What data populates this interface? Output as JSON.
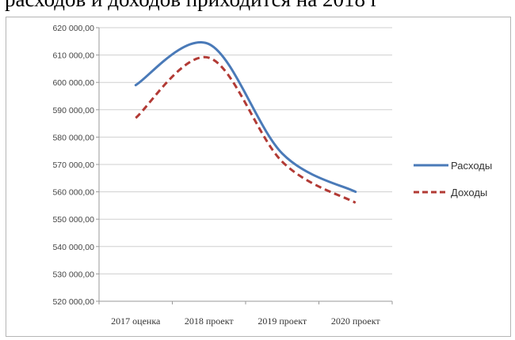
{
  "document": {
    "fragment_text": "расходов и доходов приходится на 2018 г"
  },
  "chart_data": {
    "type": "line",
    "title": "",
    "xlabel": "",
    "ylabel": "",
    "categories": [
      "2017 оценка",
      "2018 проект",
      "2019 проект",
      "2020 проект"
    ],
    "series": [
      {
        "name": "Расходы",
        "values": [
          599000,
          614000,
          574000,
          560000
        ],
        "color": "#4a7ab8",
        "dash": "solid"
      },
      {
        "name": "Доходы",
        "values": [
          587000,
          609000,
          571000,
          556000
        ],
        "color": "#b23a35",
        "dash": "dashed"
      }
    ],
    "ylim": [
      520000,
      620000
    ],
    "ytick_labels": [
      "520 000,00",
      "530 000,00",
      "540 000,00",
      "550 000,00",
      "560 000,00",
      "570 000,00",
      "580 000,00",
      "590 000,00",
      "600 000,00",
      "610 000,00",
      "620 000,00"
    ],
    "grid": true,
    "smooth": true,
    "legend_position": "right"
  }
}
